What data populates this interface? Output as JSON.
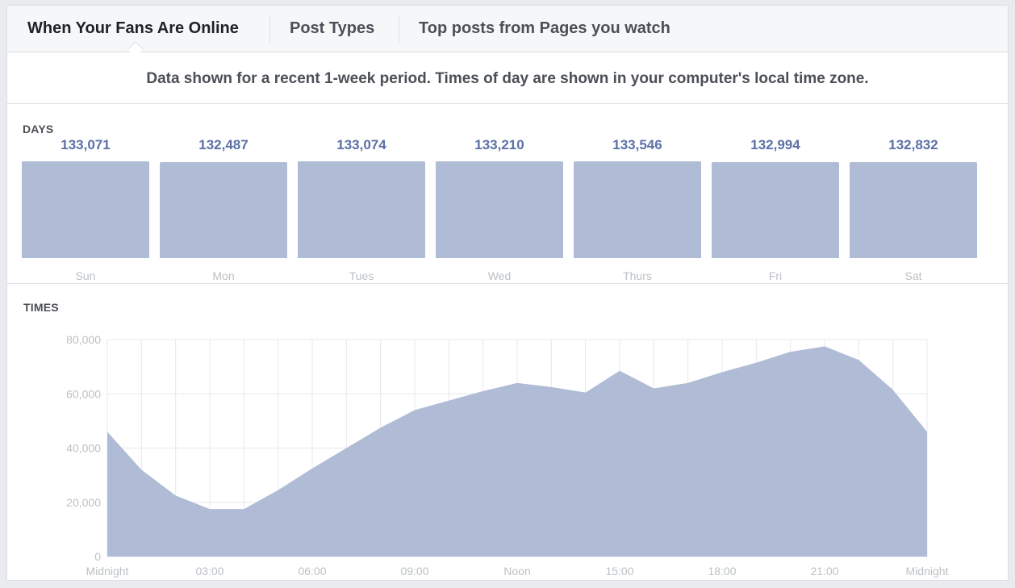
{
  "tabs": [
    {
      "label": "When Your Fans Are Online",
      "active": true
    },
    {
      "label": "Post Types",
      "active": false
    },
    {
      "label": "Top posts from Pages you watch",
      "active": false
    }
  ],
  "subtitle": "Data shown for a recent 1-week period. Times of day are shown in your computer's local time zone.",
  "days_section": {
    "label": "DAYS"
  },
  "times_section": {
    "label": "TIMES"
  },
  "colors": {
    "bar": "#b0bcd6",
    "area": "#b0bcd6",
    "value_text": "#5b70a6",
    "axis_text": "#bcc0c4",
    "grid": "#e6e8ec"
  },
  "chart_data": [
    {
      "type": "bar",
      "title": "DAYS",
      "categories": [
        "Sun",
        "Mon",
        "Tues",
        "Wed",
        "Thurs",
        "Fri",
        "Sat"
      ],
      "values": [
        133071,
        132487,
        133074,
        133210,
        133546,
        132994,
        132832
      ],
      "value_labels": [
        "133,071",
        "132,487",
        "133,074",
        "133,210",
        "133,546",
        "132,994",
        "132,832"
      ],
      "grid": false
    },
    {
      "type": "area",
      "title": "TIMES",
      "x": [
        0,
        1,
        2,
        3,
        4,
        5,
        6,
        7,
        8,
        9,
        10,
        11,
        12,
        13,
        14,
        15,
        16,
        17,
        18,
        19,
        20,
        21,
        22,
        23,
        24
      ],
      "values": [
        46000,
        32000,
        22500,
        17500,
        17500,
        24500,
        32500,
        40000,
        47500,
        54000,
        57500,
        61000,
        64000,
        62500,
        60500,
        68500,
        62000,
        64000,
        68000,
        71500,
        75500,
        77500,
        72500,
        61500,
        46000
      ],
      "x_tick_labels": [
        {
          "x": 0,
          "label": "Midnight"
        },
        {
          "x": 3,
          "label": "03:00"
        },
        {
          "x": 6,
          "label": "06:00"
        },
        {
          "x": 9,
          "label": "09:00"
        },
        {
          "x": 12,
          "label": "Noon"
        },
        {
          "x": 15,
          "label": "15:00"
        },
        {
          "x": 18,
          "label": "18:00"
        },
        {
          "x": 21,
          "label": "21:00"
        },
        {
          "x": 24,
          "label": "Midnight"
        }
      ],
      "y_ticks": [
        0,
        20000,
        40000,
        60000,
        80000
      ],
      "y_tick_labels": [
        "0",
        "20,000",
        "40,000",
        "60,000",
        "80,000"
      ],
      "ylim": [
        0,
        80000
      ],
      "xlim": [
        0,
        24
      ],
      "grid": true
    }
  ]
}
